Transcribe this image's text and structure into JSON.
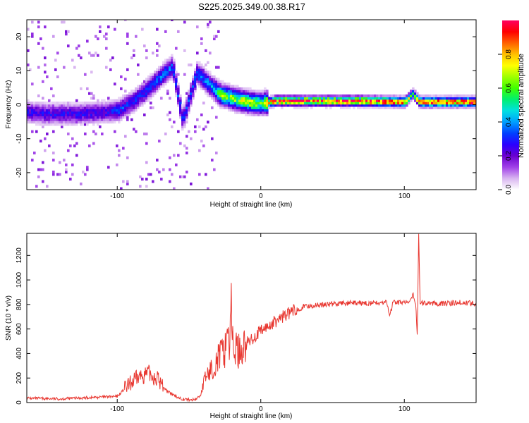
{
  "title": "S225.2025.349.00.38.R17",
  "chart_data": [
    {
      "type": "heatmap",
      "title": "S225.2025.349.00.38.R17",
      "xlabel": "Height of straight line (km)",
      "ylabel": "Frequency (Hz)",
      "xlim": [
        -163,
        150
      ],
      "ylim": [
        -25,
        25
      ],
      "xticks": [
        -100,
        0,
        100
      ],
      "yticks": [
        -20,
        -10,
        0,
        10,
        20
      ],
      "colorbar": {
        "label": "Normalized spectral amplitude",
        "range": [
          0,
          1
        ],
        "ticks": [
          0.0,
          0.2,
          0.4,
          0.6,
          0.8
        ],
        "colors": [
          "#ffffff",
          "#d8b4f0",
          "#a040e8",
          "#6a00d0",
          "#2a00ff",
          "#0040ff",
          "#00a0ff",
          "#00e0e0",
          "#00f070",
          "#40ff00",
          "#a0ff00",
          "#ffff00",
          "#ffc000",
          "#ff6000",
          "#ff0000",
          "#ff0060"
        ]
      },
      "ridge": {
        "height_km": [
          -163,
          -150,
          -130,
          -110,
          -100,
          -90,
          -80,
          -70,
          -62,
          -55,
          -45,
          -35,
          -28,
          -20,
          -10,
          0,
          10,
          30,
          60,
          80,
          100,
          105,
          110,
          120,
          150
        ],
        "freq_hz": [
          -2.5,
          -3.0,
          -3.0,
          -2.5,
          -2.0,
          0.5,
          4.0,
          8.0,
          11.0,
          -5.0,
          9.0,
          5.0,
          2.5,
          1.5,
          0.5,
          0.0,
          0.8,
          0.8,
          0.8,
          0.7,
          0.5,
          3.0,
          0.5,
          0.5,
          0.5
        ],
        "amplitude": [
          0.25,
          0.25,
          0.25,
          0.25,
          0.3,
          0.3,
          0.3,
          0.35,
          0.35,
          0.3,
          0.35,
          0.4,
          0.6,
          0.6,
          0.65,
          0.6,
          0.9,
          0.9,
          0.9,
          0.9,
          0.85,
          0.5,
          0.9,
          0.9,
          0.9
        ]
      }
    },
    {
      "type": "line",
      "title": "",
      "xlabel": "Height of straight line (km)",
      "ylabel": "SNR (10 * v/v)",
      "xlim": [
        -163,
        150
      ],
      "ylim": [
        0,
        1380
      ],
      "xticks": [
        -100,
        0,
        100
      ],
      "yticks": [
        0,
        200,
        400,
        600,
        800,
        1000,
        1200
      ],
      "series": [
        {
          "name": "SNR",
          "color": "#e8362f",
          "x": [
            -163,
            -140,
            -120,
            -100,
            -95,
            -90,
            -85,
            -80,
            -78,
            -75,
            -72,
            -70,
            -65,
            -60,
            -55,
            -48,
            -45,
            -42,
            -40,
            -38,
            -35,
            -32,
            -30,
            -28,
            -25,
            -23,
            -22,
            -21,
            -20,
            -18,
            -15,
            -12,
            -10,
            -8,
            -5,
            0,
            5,
            10,
            15,
            20,
            25,
            30,
            35,
            40,
            45,
            50,
            60,
            70,
            80,
            88,
            90,
            92,
            95,
            100,
            104,
            106,
            108,
            109,
            110,
            111,
            112,
            115,
            120,
            130,
            140,
            150
          ],
          "y": [
            35,
            30,
            40,
            50,
            110,
            160,
            210,
            230,
            240,
            210,
            200,
            160,
            90,
            55,
            30,
            20,
            30,
            60,
            150,
            220,
            260,
            320,
            360,
            390,
            420,
            680,
            380,
            920,
            500,
            440,
            420,
            460,
            480,
            500,
            530,
            580,
            620,
            660,
            700,
            730,
            760,
            780,
            790,
            795,
            800,
            805,
            810,
            810,
            810,
            815,
            700,
            820,
            815,
            820,
            815,
            880,
            800,
            560,
            1380,
            800,
            810,
            810,
            810,
            810,
            815,
            810
          ]
        }
      ]
    }
  ]
}
